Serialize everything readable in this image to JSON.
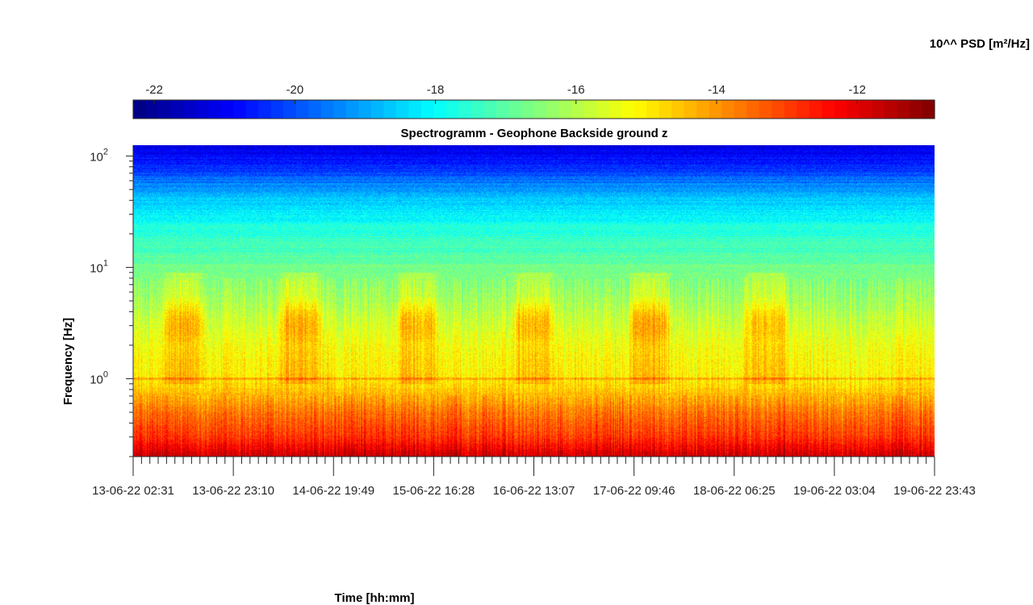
{
  "chart_data": {
    "type": "heatmap",
    "title": "Spectrogramm - Geophone Backside ground z",
    "xlabel": "Time [hh:mm]",
    "ylabel": "Frequency [Hz]",
    "y_scale": "log",
    "ylim": [
      0.2,
      125
    ],
    "y_ticks": [
      {
        "base": "10",
        "exp": "0",
        "value": 1
      },
      {
        "base": "10",
        "exp": "1",
        "value": 10
      },
      {
        "base": "10",
        "exp": "2",
        "value": 100
      }
    ],
    "x_tick_labels": [
      "13-06-22 02:31",
      "13-06-22 23:10",
      "14-06-22 19:49",
      "15-06-22 16:28",
      "16-06-22 13:07",
      "17-06-22 09:46",
      "18-06-22 06:25",
      "19-06-22 03:04",
      "19-06-22 23:43"
    ],
    "colorbar": {
      "label": "10^^ PSD [m²/Hz]",
      "colormap": "jet",
      "range": [
        -22.3,
        -10.9
      ],
      "tick_labels": [
        "-22",
        "-20",
        "-18",
        "-16",
        "-14",
        "-12"
      ],
      "tick_values": [
        -22,
        -20,
        -18,
        -16,
        -14,
        -12
      ]
    },
    "grid": false,
    "spectrum_profile": [
      {
        "frequency_hz": 0.2,
        "log10_psd": -11.7
      },
      {
        "frequency_hz": 0.3,
        "log10_psd": -12.9
      },
      {
        "frequency_hz": 0.5,
        "log10_psd": -13.6
      },
      {
        "frequency_hz": 0.8,
        "log10_psd": -14.6
      },
      {
        "frequency_hz": 1.0,
        "log10_psd": -15.0
      },
      {
        "frequency_hz": 2.0,
        "log10_psd": -15.3
      },
      {
        "frequency_hz": 5.0,
        "log10_psd": -16.2
      },
      {
        "frequency_hz": 10,
        "log10_psd": -16.8
      },
      {
        "frequency_hz": 20,
        "log10_psd": -17.5
      },
      {
        "frequency_hz": 40,
        "log10_psd": -18.6
      },
      {
        "frequency_hz": 60,
        "log10_psd": -19.6
      },
      {
        "frequency_hz": 80,
        "log10_psd": -20.5
      },
      {
        "frequency_hz": 125,
        "log10_psd": -21.2
      }
    ],
    "daily_activity_bursts": [
      {
        "start": "13-06-22 08:00",
        "end": "13-06-22 18:00",
        "frequency_hz": 3.0,
        "log10_psd": -14.2
      },
      {
        "start": "14-06-22 08:00",
        "end": "14-06-22 18:00",
        "frequency_hz": 3.0,
        "log10_psd": -14.2
      },
      {
        "start": "15-06-22 08:00",
        "end": "15-06-22 18:00",
        "frequency_hz": 3.0,
        "log10_psd": -14.2
      },
      {
        "start": "16-06-22 08:00",
        "end": "16-06-22 18:00",
        "frequency_hz": 3.0,
        "log10_psd": -14.2
      },
      {
        "start": "17-06-22 08:00",
        "end": "17-06-22 18:00",
        "frequency_hz": 3.0,
        "log10_psd": -14.0
      },
      {
        "start": "18-06-22 08:00",
        "end": "18-06-22 18:00",
        "frequency_hz": 3.0,
        "log10_psd": -14.4
      }
    ]
  }
}
